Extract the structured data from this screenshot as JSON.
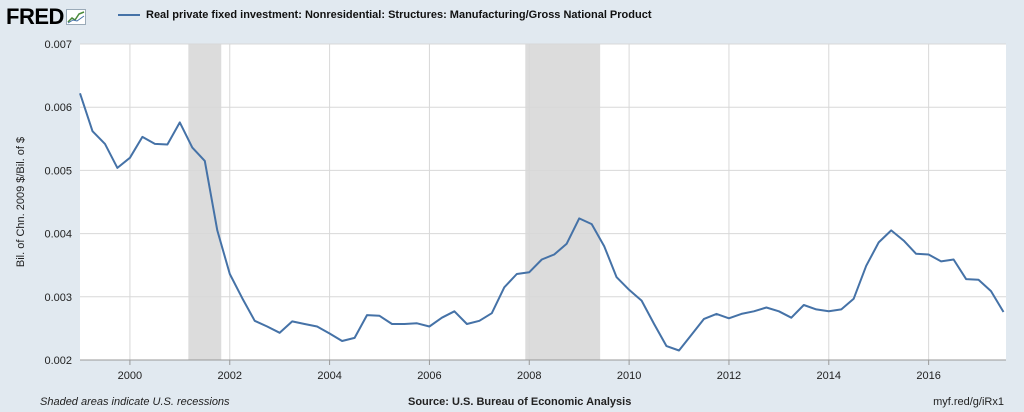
{
  "header": {
    "logo_text": "FRED",
    "series_title": "Real private fixed investment: Nonresidential: Structures: Manufacturing/Gross National Product"
  },
  "footer": {
    "recession_note": "Shaded areas indicate U.S. recessions",
    "source": "Source: U.S. Bureau of Economic Analysis",
    "short_url": "myf.red/g/iRx1"
  },
  "colors": {
    "line": "#4572a7",
    "recession": "#dcdcdc",
    "plot_bg": "#ffffff",
    "page_bg": "#e1e9f0",
    "grid": "#d8d8d8"
  },
  "chart_data": {
    "type": "line",
    "title": "Real private fixed investment: Nonresidential: Structures: Manufacturing/Gross National Product",
    "ylabel": "Bil. of Chn. 2009 $/Bil. of $",
    "xlabel": "",
    "xlim": [
      1999.0,
      2017.55
    ],
    "ylim": [
      0.002,
      0.007
    ],
    "x_ticks": [
      2000,
      2002,
      2004,
      2006,
      2008,
      2010,
      2012,
      2014,
      2016
    ],
    "x_tick_labels": [
      "2000",
      "2002",
      "2004",
      "2006",
      "2008",
      "2010",
      "2012",
      "2014",
      "2016"
    ],
    "y_ticks": [
      0.002,
      0.003,
      0.004,
      0.005,
      0.006,
      0.007
    ],
    "y_tick_labels": [
      "0.002",
      "0.003",
      "0.004",
      "0.005",
      "0.006",
      "0.007"
    ],
    "grid": true,
    "legend": "top-left",
    "recessions": [
      [
        2001.17,
        2001.83
      ],
      [
        2007.92,
        2009.42
      ]
    ],
    "series": [
      {
        "name": "Real private fixed investment: Nonresidential: Structures: Manufacturing/Gross National Product",
        "x": [
          1999.0,
          1999.25,
          1999.5,
          1999.75,
          2000.0,
          2000.25,
          2000.5,
          2000.75,
          2001.0,
          2001.25,
          2001.5,
          2001.75,
          2002.0,
          2002.25,
          2002.5,
          2002.75,
          2003.0,
          2003.25,
          2003.5,
          2003.75,
          2004.0,
          2004.25,
          2004.5,
          2004.75,
          2005.0,
          2005.25,
          2005.5,
          2005.75,
          2006.0,
          2006.25,
          2006.5,
          2006.75,
          2007.0,
          2007.25,
          2007.5,
          2007.75,
          2008.0,
          2008.25,
          2008.5,
          2008.75,
          2009.0,
          2009.25,
          2009.5,
          2009.75,
          2010.0,
          2010.25,
          2010.5,
          2010.75,
          2011.0,
          2011.25,
          2011.5,
          2011.75,
          2012.0,
          2012.25,
          2012.5,
          2012.75,
          2013.0,
          2013.25,
          2013.5,
          2013.75,
          2014.0,
          2014.25,
          2014.5,
          2014.75,
          2015.0,
          2015.25,
          2015.5,
          2015.75,
          2016.0,
          2016.25,
          2016.5,
          2016.75,
          2017.0,
          2017.25,
          2017.5
        ],
        "y": [
          0.00622,
          0.00562,
          0.00542,
          0.00504,
          0.0052,
          0.00553,
          0.00542,
          0.00541,
          0.00576,
          0.00536,
          0.00515,
          0.00405,
          0.00336,
          0.00298,
          0.00262,
          0.00253,
          0.00243,
          0.00261,
          0.00257,
          0.00253,
          0.00242,
          0.0023,
          0.00235,
          0.00271,
          0.0027,
          0.00257,
          0.00257,
          0.00258,
          0.00253,
          0.00267,
          0.00277,
          0.00257,
          0.00262,
          0.00274,
          0.00315,
          0.00336,
          0.00339,
          0.00359,
          0.00367,
          0.00384,
          0.00424,
          0.00415,
          0.0038,
          0.00331,
          0.00311,
          0.00294,
          0.00257,
          0.00222,
          0.00215,
          0.0024,
          0.00265,
          0.00273,
          0.00266,
          0.00273,
          0.00277,
          0.00283,
          0.00277,
          0.00267,
          0.00287,
          0.0028,
          0.00277,
          0.0028,
          0.00297,
          0.00349,
          0.00386,
          0.00405,
          0.00389,
          0.00368,
          0.00367,
          0.00356,
          0.00359,
          0.00328,
          0.00327,
          0.00309,
          0.00276
        ]
      }
    ]
  }
}
